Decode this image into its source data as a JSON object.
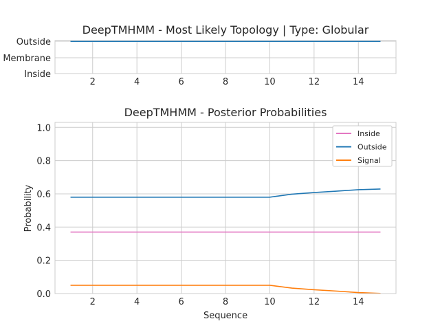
{
  "chart_data": [
    {
      "type": "line",
      "title": "DeepTMHMM - Most Likely Topology | Type: Globular",
      "xlabel": "",
      "ylabel": "",
      "x": [
        1,
        2,
        3,
        4,
        5,
        6,
        7,
        8,
        9,
        10,
        11,
        12,
        13,
        14,
        15
      ],
      "x_ticks": [
        "2",
        "4",
        "6",
        "8",
        "10",
        "12",
        "14"
      ],
      "x_tick_values": [
        2,
        4,
        6,
        8,
        10,
        12,
        14
      ],
      "y_categories": [
        "Inside",
        "Membrane",
        "Outside"
      ],
      "series": [
        {
          "values": [
            "Outside",
            "Outside",
            "Outside",
            "Outside",
            "Outside",
            "Outside",
            "Outside",
            "Outside",
            "Outside",
            "Outside",
            "Outside",
            "Outside",
            "Outside",
            "Outside",
            "Outside"
          ],
          "color": "#1f77b4"
        }
      ],
      "xlim": [
        0.3,
        15.7
      ],
      "grid": true
    },
    {
      "type": "line",
      "title": "DeepTMHMM - Posterior Probabilities",
      "xlabel": "Sequence",
      "ylabel": "Probability",
      "x": [
        1,
        2,
        3,
        4,
        5,
        6,
        7,
        8,
        9,
        10,
        11,
        12,
        13,
        14,
        15
      ],
      "x_ticks": [
        "2",
        "4",
        "6",
        "8",
        "10",
        "12",
        "14"
      ],
      "x_tick_values": [
        2,
        4,
        6,
        8,
        10,
        12,
        14
      ],
      "y_ticks": [
        "0.0",
        "0.2",
        "0.4",
        "0.6",
        "0.8",
        "1.0"
      ],
      "y_tick_values": [
        0,
        0.2,
        0.4,
        0.6,
        0.8,
        1.0
      ],
      "xlim": [
        0.3,
        15.7
      ],
      "ylim": [
        0,
        1.03
      ],
      "legend_position": "top-right",
      "grid": true,
      "series": [
        {
          "name": "Inside",
          "color": "#e377c2",
          "values": [
            0.37,
            0.37,
            0.37,
            0.37,
            0.37,
            0.37,
            0.37,
            0.37,
            0.37,
            0.37,
            0.37,
            0.37,
            0.37,
            0.37,
            0.37
          ]
        },
        {
          "name": "Outside",
          "color": "#1f77b4",
          "values": [
            0.58,
            0.58,
            0.58,
            0.58,
            0.58,
            0.58,
            0.58,
            0.58,
            0.58,
            0.58,
            0.598,
            0.608,
            0.616,
            0.625,
            0.629
          ]
        },
        {
          "name": "Signal",
          "color": "#ff7f0e",
          "values": [
            0.05,
            0.05,
            0.05,
            0.05,
            0.05,
            0.05,
            0.05,
            0.05,
            0.05,
            0.05,
            0.033,
            0.023,
            0.015,
            0.006,
            0.001
          ]
        }
      ]
    }
  ]
}
